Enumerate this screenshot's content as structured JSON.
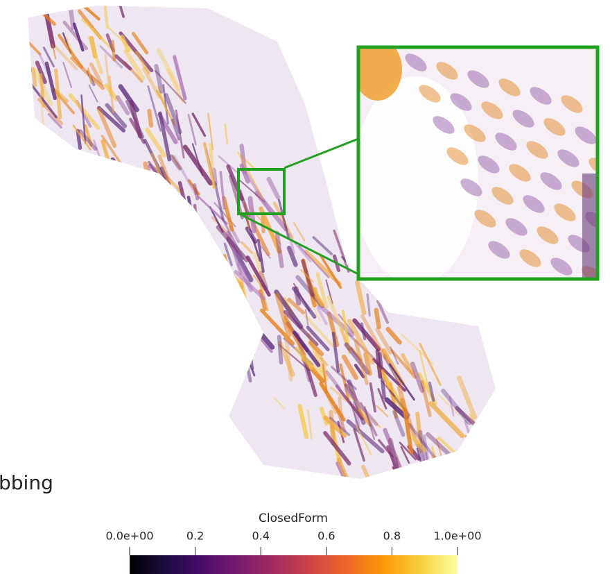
{
  "caption_fragment": "bbing",
  "colorbar": {
    "title": "ClosedForm",
    "range": [
      0,
      1
    ],
    "ticks": [
      {
        "value": 0,
        "label": "0.0e+00"
      },
      0.2,
      0.4,
      0.6,
      0.8,
      {
        "value": 1,
        "label": "1.0e+00"
      }
    ],
    "colors": [
      "#000004",
      "#1b0c41",
      "#4a0c6b",
      "#781c6d",
      "#a52c60",
      "#cf4446",
      "#ed6925",
      "#fb9b06",
      "#f7d13d",
      "#fcffa4"
    ]
  }
}
